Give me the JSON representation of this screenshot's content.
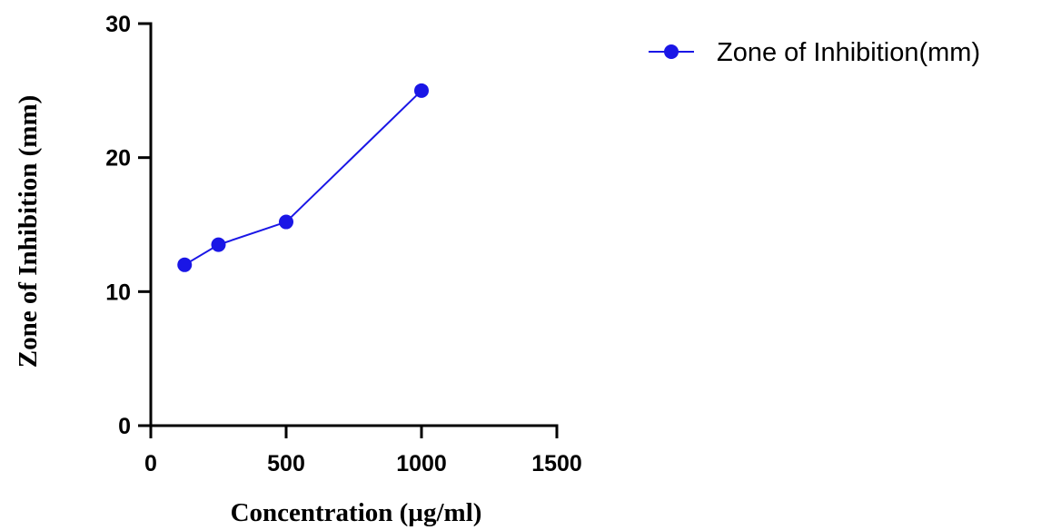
{
  "chart_data": {
    "type": "line",
    "xlabel": "Concentration (µg/ml)",
    "ylabel": "Zone of Inhibition (mm)",
    "xlim": [
      0,
      1500
    ],
    "ylim": [
      0,
      30
    ],
    "x_ticks": [
      0,
      500,
      1000,
      1500
    ],
    "y_ticks": [
      0,
      10,
      20,
      30
    ],
    "grid": false,
    "legend_position": "top-right",
    "series": [
      {
        "name": "Zone of Inhibition(mm)",
        "color": "#1a16e6",
        "marker": "circle",
        "points": [
          {
            "x": 125,
            "y": 12.0
          },
          {
            "x": 250,
            "y": 13.5
          },
          {
            "x": 500,
            "y": 15.2
          },
          {
            "x": 1000,
            "y": 25.0
          }
        ]
      }
    ]
  }
}
